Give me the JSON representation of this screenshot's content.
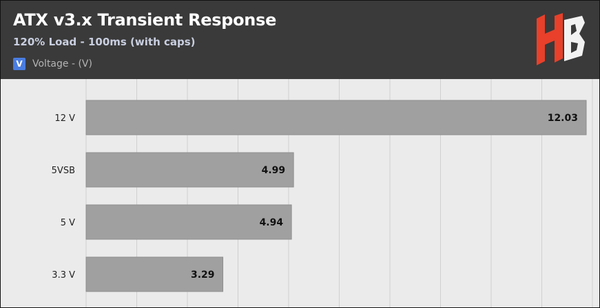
{
  "header": {
    "title": "ATX v3.x Transient Response",
    "subtitle": "120% Load - 100ms (with caps)",
    "legend": {
      "swatch_text": "V",
      "label": "Voltage - (V)",
      "color": "#4a7de0"
    },
    "logo_text": "HB"
  },
  "colors": {
    "header_bg": "#3a3a3a",
    "plot_bg": "#ebebeb",
    "bar": "#a0a0a0",
    "logo": "#e8402a"
  },
  "chart_data": {
    "type": "bar",
    "orientation": "horizontal",
    "categories": [
      "12 V",
      "5VSB",
      "5 V",
      "3.3 V"
    ],
    "series": [
      {
        "name": "Voltage - (V)",
        "values": [
          12.03,
          4.99,
          4.94,
          3.29
        ]
      }
    ],
    "xlim": [
      0,
      12.03
    ],
    "grid": true,
    "legend_position": "top-left"
  }
}
